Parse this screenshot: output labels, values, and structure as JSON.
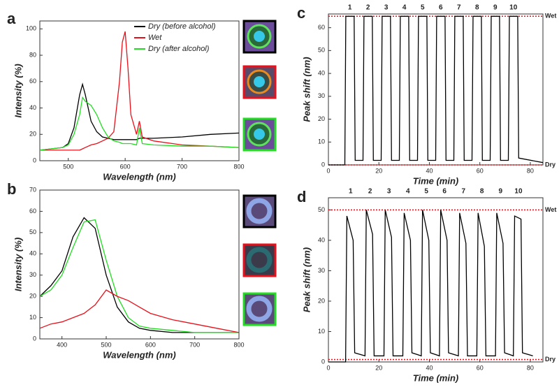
{
  "chart_data": [
    {
      "type": "line",
      "panel": "a",
      "xlabel": "Wavelength (nm)",
      "ylabel": "Intensity (%)",
      "xlim": [
        450,
        800
      ],
      "xticks": [
        500,
        600,
        700,
        800
      ],
      "ylim": [
        0,
        106
      ],
      "yticks": [
        0,
        20,
        40,
        60,
        80,
        100
      ],
      "legend": "top-right",
      "x": [
        450,
        470,
        490,
        500,
        510,
        520,
        525,
        530,
        540,
        550,
        560,
        570,
        580,
        590,
        595,
        600,
        605,
        610,
        620,
        625,
        630,
        650,
        700,
        750,
        800
      ],
      "series": [
        {
          "name": "Dry (before alcohol)",
          "color": "#000000",
          "values": [
            8,
            9,
            10,
            13,
            25,
            50,
            58,
            50,
            30,
            22,
            18,
            17,
            16,
            16,
            16,
            16,
            16,
            16,
            16,
            17,
            17,
            17,
            18,
            20,
            21
          ]
        },
        {
          "name": "Wet",
          "color": "#e8101a",
          "values": [
            8,
            8,
            8,
            8,
            8,
            8,
            9,
            10,
            12,
            13,
            15,
            17,
            22,
            60,
            90,
            98,
            70,
            35,
            20,
            30,
            18,
            15,
            12,
            11,
            10
          ]
        },
        {
          "name": "Dry (after alcohol)",
          "color": "#22dd22",
          "values": [
            8,
            9,
            10,
            12,
            20,
            35,
            48,
            45,
            42,
            35,
            25,
            18,
            15,
            14,
            13,
            13,
            13,
            13,
            12,
            25,
            13,
            12,
            11,
            11,
            10
          ]
        }
      ]
    },
    {
      "type": "line",
      "panel": "b",
      "xlabel": "Wavelength (nm)",
      "ylabel": "Intensity (%)",
      "xlim": [
        350,
        800
      ],
      "xticks": [
        400,
        500,
        600,
        700,
        800
      ],
      "ylim": [
        0,
        70
      ],
      "yticks": [
        0,
        10,
        20,
        30,
        40,
        50,
        60,
        70
      ],
      "x": [
        350,
        375,
        400,
        425,
        450,
        475,
        500,
        525,
        550,
        575,
        600,
        650,
        700,
        750,
        800
      ],
      "series": [
        {
          "color": "#000000",
          "values": [
            20,
            25,
            32,
            48,
            57,
            52,
            30,
            15,
            8,
            5,
            4,
            3,
            3,
            3,
            3
          ]
        },
        {
          "color": "#22dd22",
          "values": [
            20,
            23,
            30,
            43,
            55,
            56,
            37,
            20,
            10,
            6,
            5,
            4,
            3,
            3,
            3
          ]
        },
        {
          "color": "#e8101a",
          "values": [
            5,
            7,
            8,
            10,
            12,
            16,
            23,
            20,
            18,
            15,
            12,
            9,
            7,
            5,
            3
          ]
        }
      ]
    },
    {
      "type": "line",
      "panel": "c",
      "xlabel": "Time (min)",
      "ylabel": "Peak shift (nm)",
      "xlim": [
        0,
        85
      ],
      "xticks": [
        0,
        20,
        40,
        60,
        80
      ],
      "ylim": [
        0,
        66
      ],
      "yticks": [
        0,
        10,
        20,
        30,
        40,
        50,
        60
      ],
      "reference_lines": [
        {
          "value": 65,
          "label": "Wet",
          "color": "#e8101a"
        },
        {
          "value": 0,
          "label": "Dry",
          "color": "#e8101a"
        }
      ],
      "cycle_labels": {
        "x": [
          8.5,
          15.7,
          22.9,
          30.1,
          37.3,
          44.5,
          51.7,
          58.9,
          66.1,
          73.3
        ],
        "labels": [
          "1",
          "2",
          "3",
          "4",
          "5",
          "6",
          "7",
          "8",
          "9",
          "10"
        ],
        "color": "#e8101a"
      },
      "x": [
        0,
        6.5,
        6.9,
        10.2,
        10.6,
        13.7,
        14.1,
        17.4,
        17.8,
        20.9,
        21.3,
        24.6,
        25.0,
        28.1,
        28.5,
        31.8,
        32.2,
        35.3,
        35.7,
        39.0,
        39.4,
        42.5,
        42.9,
        46.2,
        46.6,
        49.7,
        50.1,
        53.4,
        53.8,
        56.9,
        57.3,
        60.6,
        61.0,
        64.1,
        64.5,
        67.8,
        68.2,
        71.3,
        71.7,
        75.0,
        75.4,
        85
      ],
      "series": [
        {
          "color": "#000000",
          "values": [
            0,
            0,
            65,
            65,
            2,
            2,
            65,
            65,
            2,
            2,
            65,
            65,
            2,
            2,
            65,
            65,
            2,
            2,
            65,
            65,
            2,
            2,
            65,
            65,
            2,
            2,
            65,
            65,
            2,
            2,
            65,
            65,
            2,
            2,
            65,
            65,
            2,
            2,
            65,
            65,
            3,
            1
          ]
        }
      ]
    },
    {
      "type": "line",
      "panel": "d",
      "xlabel": "Time (min)",
      "ylabel": "Peak shift (nm)",
      "xlim": [
        0,
        85
      ],
      "xticks": [
        0,
        20,
        40,
        60,
        80
      ],
      "ylim": [
        0,
        54
      ],
      "yticks": [
        0,
        10,
        20,
        30,
        40,
        50
      ],
      "reference_lines": [
        {
          "value": 50,
          "label": "Wet",
          "color": "#e8101a"
        },
        {
          "value": 0.8,
          "label": "Dry",
          "color": "#e8101a"
        }
      ],
      "cycle_labels": {
        "x": [
          8.8,
          16.5,
          24.0,
          31.5,
          38.8,
          46.0,
          53.5,
          60.8,
          68.2,
          75.3
        ],
        "labels": [
          "1",
          "2",
          "3",
          "4",
          "5",
          "6",
          "7",
          "8",
          "9",
          "10"
        ],
        "color": "#e8101a"
      },
      "x": [
        0,
        6.8,
        7.3,
        9.8,
        10.4,
        14.5,
        15.0,
        17.5,
        18.1,
        22.0,
        22.5,
        25.0,
        25.6,
        29.5,
        30.0,
        32.5,
        33.1,
        36.8,
        37.3,
        39.8,
        40.4,
        44.0,
        44.5,
        47.0,
        47.6,
        51.5,
        52.0,
        54.5,
        55.1,
        58.8,
        59.3,
        61.8,
        62.4,
        66.2,
        66.7,
        69.2,
        69.8,
        73.3,
        73.8,
        76.3,
        76.9,
        81
      ],
      "series": [
        {
          "color": "#000000",
          "values": [
            0,
            0,
            48,
            40,
            3,
            2,
            50,
            42,
            2,
            2,
            50,
            41,
            2,
            2,
            49,
            40,
            3,
            2,
            50,
            40,
            3,
            2,
            50,
            40,
            3,
            2,
            49,
            39,
            2,
            2,
            49,
            38,
            2,
            2,
            49,
            39,
            3,
            2,
            48,
            47,
            3,
            2
          ]
        }
      ]
    }
  ]
}
